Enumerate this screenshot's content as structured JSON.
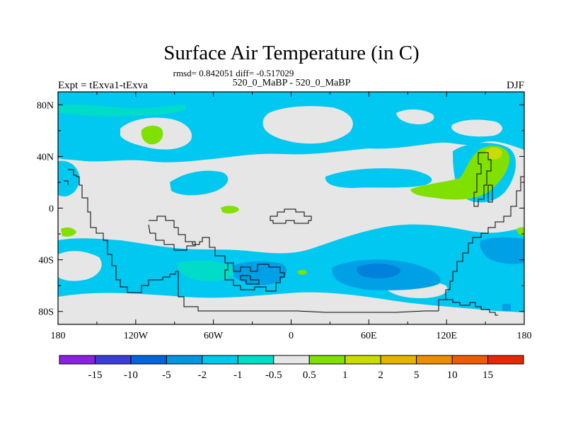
{
  "title": "Surface Air Temperature (in C)",
  "stats_line": "rmsd= 0.842051 diff= -0.517029",
  "left_label": "Expt = tExva1-tExva",
  "center_label": "520_0_MaBP - 520_0_MaBP",
  "right_label": "DJF",
  "colors": {
    "background": "#e6e6e6",
    "lightblue": "#00c8f0",
    "aqua": "#00dcc8",
    "blue": "#00a0e6",
    "midblue": "#0082dc",
    "green": "#80e000",
    "yellow": "#c8dc00",
    "coastline": "#000000"
  },
  "chart_data": {
    "type": "heatmap",
    "map_projection": "cylindrical-equidistant",
    "x_ticks": [
      "180",
      "120W",
      "60W",
      "0",
      "60E",
      "120E",
      "180"
    ],
    "y_ticks": [
      "80N",
      "40N",
      "0",
      "40S",
      "80S"
    ],
    "lon_range": [
      -180,
      180
    ],
    "lat_range": [
      -90,
      90
    ],
    "colorbar": {
      "labels": [
        "-15",
        "-10",
        "-5",
        "-2",
        "-1",
        "-0.5",
        "0.5",
        "1",
        "2",
        "5",
        "10",
        "15"
      ],
      "colors": [
        "#8c1ee6",
        "#3c3cdc",
        "#0064dc",
        "#0096e6",
        "#00c8f0",
        "#00dcc8",
        "#e6e6e6",
        "#80e000",
        "#c8dc00",
        "#e6b400",
        "#f08c00",
        "#f05a00",
        "#e62800"
      ]
    }
  }
}
